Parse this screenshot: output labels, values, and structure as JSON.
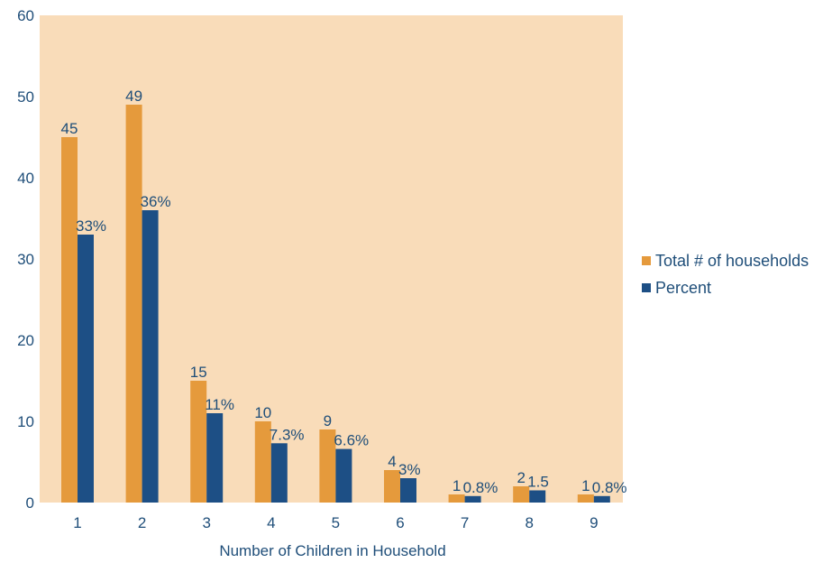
{
  "chart_data": {
    "type": "bar",
    "xlabel": "Number of Children in Household",
    "ylabel": "",
    "ylim": [
      0,
      60
    ],
    "yticks": [
      0,
      10,
      20,
      30,
      40,
      50,
      60
    ],
    "categories": [
      "1",
      "2",
      "3",
      "4",
      "5",
      "6",
      "7",
      "8",
      "9"
    ],
    "series": [
      {
        "name": "Total # of households",
        "color": "#e59a3c",
        "values": [
          45,
          49,
          15,
          10,
          9,
          4,
          1,
          2,
          1
        ],
        "labels": [
          "45",
          "49",
          "15",
          "10",
          "9",
          "4",
          "1",
          "2",
          "1"
        ]
      },
      {
        "name": "Percent",
        "color": "#1d4f85",
        "values": [
          33,
          36,
          11,
          7.3,
          6.6,
          3,
          0.8,
          1.5,
          0.8
        ],
        "labels": [
          "33%",
          "36%",
          "11%",
          "7.3%",
          "6.6%",
          "3%",
          "0.8%",
          "1.5",
          "0.8%"
        ]
      }
    ],
    "plot_background": "#f9dcb9",
    "grid": false,
    "legend_position": "right"
  }
}
